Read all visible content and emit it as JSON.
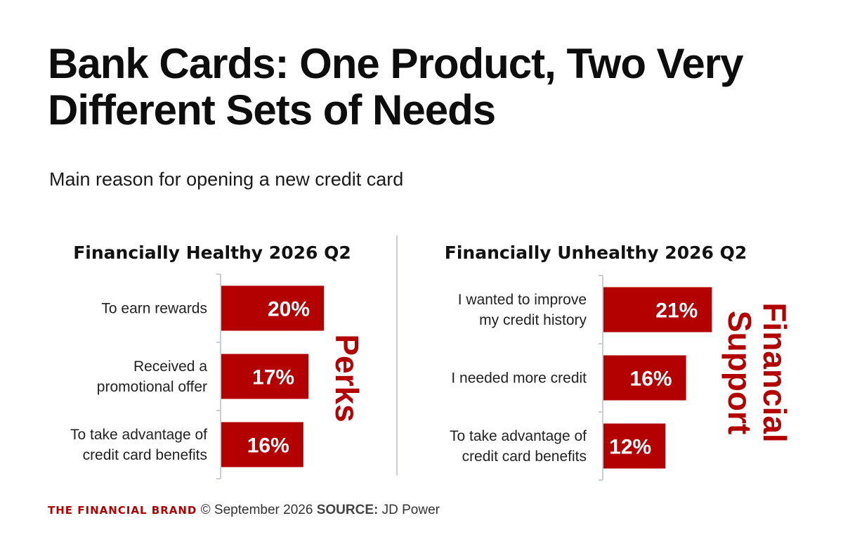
{
  "title": "Bank Cards: One Product, Two Very Different Sets of Needs",
  "subtitle": "Main reason for opening a new credit card",
  "colors": {
    "bar": "#b30000",
    "side_label": "#b30000",
    "axis": "#c8cdd6",
    "divider": "#c8cdd6"
  },
  "chart_data": [
    {
      "type": "bar",
      "orientation": "horizontal",
      "title": "Financially Healthy 2026 Q2",
      "categories": [
        [
          "To earn rewards"
        ],
        [
          "Received a",
          "promotional offer"
        ],
        [
          "To take advantage of",
          "credit card benefits"
        ]
      ],
      "values": [
        20,
        17,
        16
      ],
      "value_labels": [
        "20%",
        "17%",
        "16%"
      ],
      "unit": "%",
      "side_label": [
        "Perks"
      ],
      "grid": false
    },
    {
      "type": "bar",
      "orientation": "horizontal",
      "title": "Financially Unhealthy 2026 Q2",
      "categories": [
        [
          "I wanted to improve",
          "my credit history"
        ],
        [
          "I needed more credit"
        ],
        [
          "To take advantage of",
          "credit card benefits"
        ]
      ],
      "values": [
        21,
        16,
        12
      ],
      "value_labels": [
        "21%",
        "16%",
        "12%"
      ],
      "unit": "%",
      "side_label": [
        "Financial",
        "Support"
      ],
      "grid": false
    }
  ],
  "footer": {
    "brand": "THE FINANCIAL BRAND",
    "copyright": "© September 2026",
    "source_label": "SOURCE:",
    "source": "JD Power"
  }
}
